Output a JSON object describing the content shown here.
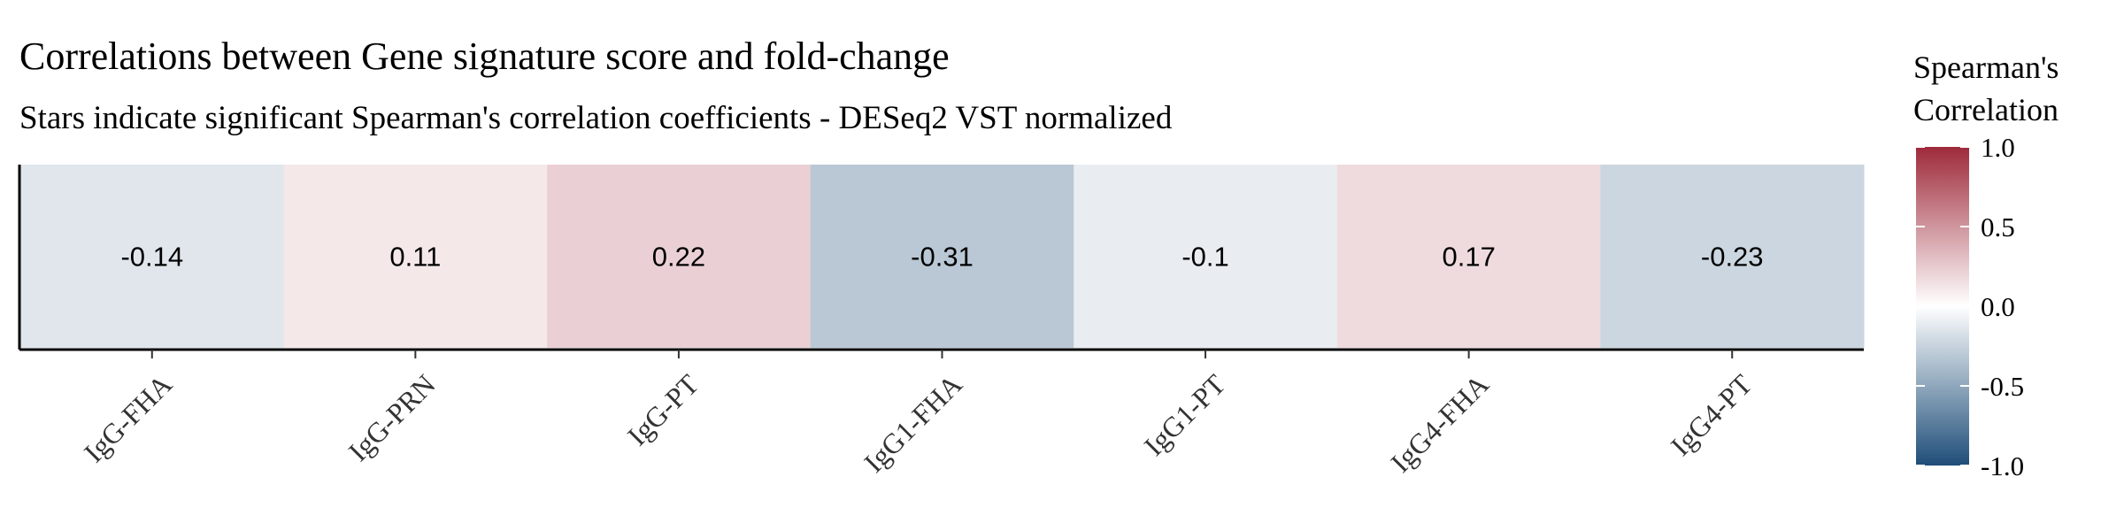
{
  "chart_data": {
    "type": "heatmap",
    "title": "Correlations between Gene signature score and fold-change",
    "subtitle": "Stars indicate significant Spearman's correlation coefficients - DESeq2 VST normalized",
    "categories": [
      "IgG-FHA",
      "IgG-PRN",
      "IgG-PT",
      "IgG1-FHA",
      "IgG1-PT",
      "IgG4-FHA",
      "IgG4-PT"
    ],
    "values": [
      -0.14,
      0.11,
      0.22,
      -0.31,
      -0.1,
      0.17,
      -0.23
    ],
    "value_labels": [
      "-0.14",
      "0.11",
      "0.22",
      "-0.31",
      "-0.1",
      "0.17",
      "-0.23"
    ],
    "legend": {
      "title_lines": [
        "Spearman's",
        "Correlation"
      ],
      "range": [
        -1.0,
        1.0
      ],
      "ticks": [
        1.0,
        0.5,
        0.0,
        -0.5,
        -1.0
      ],
      "tick_labels": [
        "1.0",
        "0.5",
        "0.0",
        "-0.5",
        "-1.0"
      ],
      "placement": "right"
    },
    "colors": {
      "low": "#1f4e79",
      "mid": "#ffffff",
      "high": "#9e2a3a"
    }
  }
}
